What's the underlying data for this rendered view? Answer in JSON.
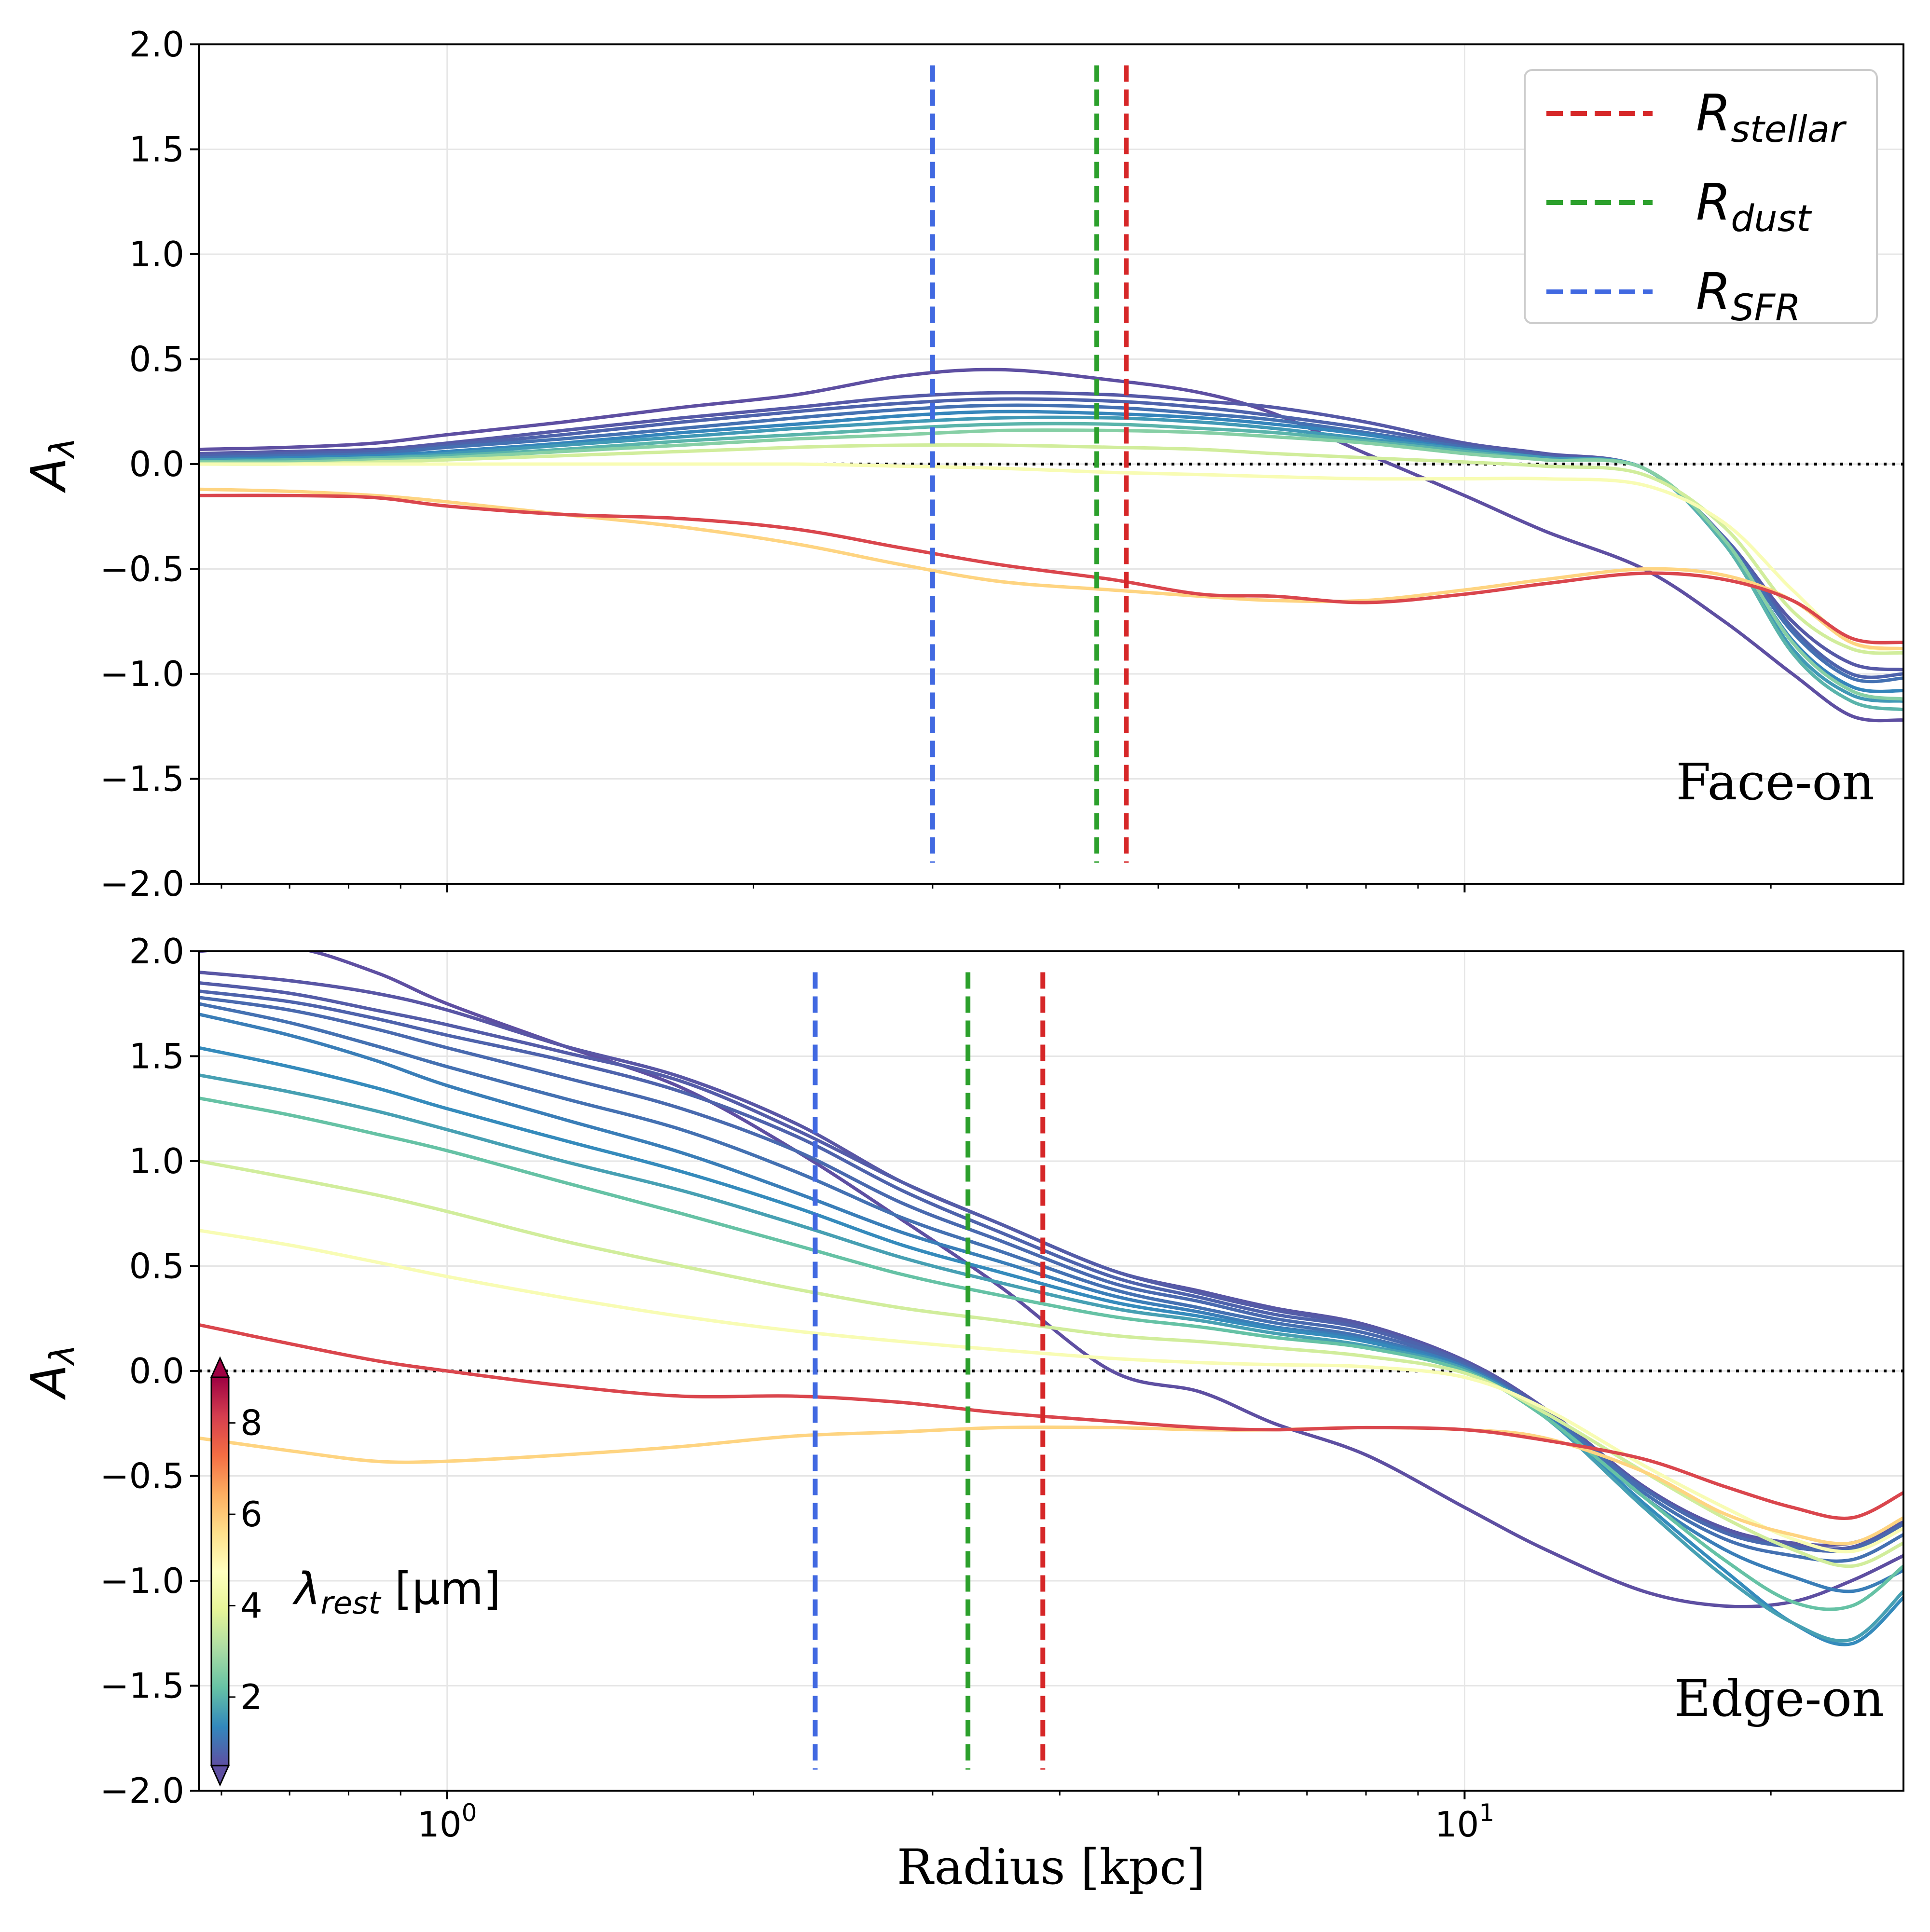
{
  "chart_data": {
    "type": "line",
    "xscale": "log",
    "xlabel": "Radius [kpc]",
    "x_ticks": [
      {
        "value": 1,
        "label": "10",
        "exp": "0"
      },
      {
        "value": 10,
        "label": "10",
        "exp": "1"
      }
    ],
    "grid": true,
    "zero_line": "dotted",
    "colorbar": {
      "label": "λ",
      "label_sub": "rest",
      "label_unit": " [μm]",
      "range": [
        0.5,
        9
      ],
      "ticks": [
        "2",
        "4",
        "6",
        "8"
      ],
      "tick_values": [
        2,
        4,
        6,
        8
      ],
      "colormap": "Spectral_r"
    },
    "legend": {
      "placement": "top-right",
      "items": [
        {
          "name": "R",
          "sub": "stellar",
          "color": "#d62728",
          "style": "dashed"
        },
        {
          "name": "R",
          "sub": "dust",
          "color": "#2ca02c",
          "style": "dashed"
        },
        {
          "name": "R",
          "sub": "SFR",
          "color": "#4169e1",
          "style": "dashed"
        }
      ]
    },
    "panels": [
      {
        "label": "Face-on",
        "ylabel": "A",
        "ylabel_sub": "λ",
        "xlim": [
          0.57,
          27
        ],
        "ylim": [
          -2,
          2
        ],
        "y_ticks": [
          "2.0",
          "1.5",
          "1.0",
          "0.5",
          "0.0",
          "−0.5",
          "−1.0",
          "−1.5",
          "−2.0"
        ],
        "y_tick_values": [
          2,
          1.5,
          1,
          0.5,
          0,
          -0.5,
          -1,
          -1.5,
          -2
        ],
        "vlines": [
          {
            "x": 3.0,
            "color": "#4169e1",
            "ymin": -1.9,
            "ymax": 1.9
          },
          {
            "x": 4.35,
            "color": "#2ca02c",
            "ymin": -1.9,
            "ymax": 1.9
          },
          {
            "x": 4.65,
            "color": "#d62728",
            "ymin": -1.9,
            "ymax": 1.9
          }
        ],
        "x": [
          0.57,
          0.7,
          0.85,
          1.0,
          1.3,
          1.7,
          2.2,
          2.8,
          3.5,
          4.5,
          5.5,
          6.5,
          8.0,
          10.0,
          12.0,
          15.0,
          18.0,
          21.0,
          24.0,
          27.0
        ],
        "series": [
          {
            "wl": 0.5,
            "values": [
              0.07,
              0.08,
              0.1,
              0.14,
              0.2,
              0.27,
              0.33,
              0.42,
              0.45,
              0.4,
              0.34,
              0.24,
              0.05,
              -0.15,
              -0.32,
              -0.5,
              -0.75,
              -1.0,
              -1.2,
              -1.22
            ]
          },
          {
            "wl": 0.65,
            "values": [
              0.05,
              0.06,
              0.07,
              0.1,
              0.16,
              0.22,
              0.27,
              0.32,
              0.34,
              0.33,
              0.3,
              0.27,
              0.2,
              0.1,
              0.05,
              -0.02,
              -0.35,
              -0.75,
              -0.95,
              -0.98
            ]
          },
          {
            "wl": 0.8,
            "values": [
              0.04,
              0.05,
              0.06,
              0.09,
              0.14,
              0.2,
              0.25,
              0.29,
              0.31,
              0.3,
              0.27,
              0.23,
              0.17,
              0.09,
              0.04,
              -0.02,
              -0.35,
              -0.78,
              -1.0,
              -1.0
            ]
          },
          {
            "wl": 1.0,
            "values": [
              0.03,
              0.04,
              0.05,
              0.08,
              0.12,
              0.17,
              0.22,
              0.26,
              0.28,
              0.27,
              0.24,
              0.21,
              0.15,
              0.08,
              0.03,
              -0.02,
              -0.36,
              -0.8,
              -1.02,
              -1.02
            ]
          },
          {
            "wl": 1.3,
            "values": [
              0.02,
              0.03,
              0.04,
              0.06,
              0.1,
              0.15,
              0.19,
              0.23,
              0.25,
              0.24,
              0.22,
              0.19,
              0.14,
              0.07,
              0.03,
              -0.02,
              -0.37,
              -0.84,
              -1.06,
              -1.08
            ]
          },
          {
            "wl": 1.6,
            "values": [
              0.02,
              0.02,
              0.03,
              0.05,
              0.09,
              0.13,
              0.17,
              0.2,
              0.22,
              0.22,
              0.2,
              0.17,
              0.12,
              0.07,
              0.03,
              -0.02,
              -0.38,
              -0.88,
              -1.1,
              -1.13
            ]
          },
          {
            "wl": 2.0,
            "values": [
              0.01,
              0.02,
              0.03,
              0.04,
              0.07,
              0.11,
              0.14,
              0.17,
              0.19,
              0.19,
              0.17,
              0.15,
              0.11,
              0.06,
              0.02,
              -0.02,
              -0.38,
              -0.9,
              -1.13,
              -1.17
            ]
          },
          {
            "wl": 2.6,
            "values": [
              0.01,
              0.01,
              0.02,
              0.03,
              0.06,
              0.09,
              0.12,
              0.14,
              0.16,
              0.16,
              0.15,
              0.13,
              0.1,
              0.05,
              0.02,
              -0.02,
              -0.36,
              -0.85,
              -1.08,
              -1.12
            ]
          },
          {
            "wl": 3.6,
            "values": [
              0.0,
              0.0,
              0.01,
              0.02,
              0.04,
              0.06,
              0.08,
              0.09,
              0.09,
              0.08,
              0.07,
              0.05,
              0.03,
              0.01,
              -0.01,
              -0.05,
              -0.3,
              -0.7,
              -0.88,
              -0.9
            ]
          },
          {
            "wl": 4.5,
            "values": [
              0.0,
              0.0,
              0.0,
              0.0,
              0.0,
              0.0,
              0.0,
              -0.01,
              -0.02,
              -0.04,
              -0.05,
              -0.06,
              -0.07,
              -0.07,
              -0.07,
              -0.1,
              -0.28,
              -0.6,
              -0.85,
              -0.88
            ]
          },
          {
            "wl": 5.8,
            "values": [
              -0.12,
              -0.13,
              -0.15,
              -0.18,
              -0.24,
              -0.3,
              -0.38,
              -0.48,
              -0.56,
              -0.6,
              -0.63,
              -0.65,
              -0.65,
              -0.6,
              -0.55,
              -0.5,
              -0.53,
              -0.65,
              -0.85,
              -0.88
            ]
          },
          {
            "wl": 8.0,
            "values": [
              -0.15,
              -0.15,
              -0.16,
              -0.2,
              -0.24,
              -0.26,
              -0.31,
              -0.4,
              -0.48,
              -0.55,
              -0.62,
              -0.63,
              -0.66,
              -0.62,
              -0.57,
              -0.52,
              -0.55,
              -0.65,
              -0.83,
              -0.85
            ]
          }
        ]
      },
      {
        "label": "Edge-on",
        "ylabel": "A",
        "ylabel_sub": "λ",
        "xlim": [
          0.57,
          27
        ],
        "ylim": [
          -2,
          2
        ],
        "y_ticks": [
          "2.0",
          "1.5",
          "1.0",
          "0.5",
          "0.0",
          "−0.5",
          "−1.0",
          "−1.5",
          "−2.0"
        ],
        "y_tick_values": [
          2,
          1.5,
          1,
          0.5,
          0,
          -0.5,
          -1,
          -1.5,
          -2
        ],
        "vlines": [
          {
            "x": 2.3,
            "color": "#4169e1",
            "ymin": -1.9,
            "ymax": 1.9
          },
          {
            "x": 3.25,
            "color": "#2ca02c",
            "ymin": -1.9,
            "ymax": 1.9
          },
          {
            "x": 3.85,
            "color": "#d62728",
            "ymin": -1.9,
            "ymax": 1.9
          }
        ],
        "x": [
          0.57,
          0.7,
          0.85,
          1.0,
          1.3,
          1.7,
          2.2,
          2.8,
          3.5,
          4.5,
          5.5,
          6.5,
          8.0,
          10.0,
          12.0,
          15.0,
          18.0,
          21.0,
          24.0,
          27.0
        ],
        "series": [
          {
            "wl": 0.5,
            "values": [
              2.0,
              2.02,
              1.9,
              1.75,
              1.55,
              1.35,
              1.05,
              0.72,
              0.4,
              0.0,
              -0.1,
              -0.25,
              -0.4,
              -0.65,
              -0.85,
              -1.05,
              -1.12,
              -1.1,
              -1.0,
              -0.88
            ]
          },
          {
            "wl": 0.6,
            "values": [
              1.9,
              1.86,
              1.8,
              1.72,
              1.55,
              1.4,
              1.18,
              0.9,
              0.7,
              0.48,
              0.38,
              0.3,
              0.22,
              0.05,
              -0.18,
              -0.55,
              -0.75,
              -0.82,
              -0.82,
              -0.72
            ]
          },
          {
            "wl": 0.7,
            "values": [
              1.85,
              1.8,
              1.72,
              1.65,
              1.52,
              1.38,
              1.15,
              0.9,
              0.7,
              0.48,
              0.37,
              0.29,
              0.21,
              0.04,
              -0.19,
              -0.56,
              -0.76,
              -0.83,
              -0.84,
              -0.72
            ]
          },
          {
            "wl": 0.8,
            "values": [
              1.81,
              1.76,
              1.68,
              1.6,
              1.48,
              1.33,
              1.12,
              0.86,
              0.66,
              0.45,
              0.35,
              0.27,
              0.2,
              0.04,
              -0.19,
              -0.56,
              -0.77,
              -0.84,
              -0.85,
              -0.73
            ]
          },
          {
            "wl": 0.9,
            "values": [
              1.78,
              1.72,
              1.63,
              1.54,
              1.4,
              1.25,
              1.05,
              0.8,
              0.62,
              0.42,
              0.33,
              0.25,
              0.18,
              0.03,
              -0.2,
              -0.56,
              -0.77,
              -0.84,
              -0.85,
              -0.73
            ]
          },
          {
            "wl": 1.0,
            "values": [
              1.75,
              1.66,
              1.55,
              1.45,
              1.3,
              1.15,
              0.95,
              0.73,
              0.57,
              0.39,
              0.3,
              0.23,
              0.16,
              0.02,
              -0.2,
              -0.58,
              -0.8,
              -0.88,
              -0.9,
              -0.78
            ]
          },
          {
            "wl": 1.2,
            "values": [
              1.7,
              1.6,
              1.48,
              1.36,
              1.2,
              1.04,
              0.85,
              0.66,
              0.52,
              0.36,
              0.28,
              0.21,
              0.15,
              0.02,
              -0.21,
              -0.6,
              -0.85,
              -0.98,
              -1.05,
              -0.95
            ]
          },
          {
            "wl": 1.4,
            "values": [
              1.54,
              1.45,
              1.35,
              1.25,
              1.1,
              0.95,
              0.78,
              0.6,
              0.47,
              0.33,
              0.26,
              0.2,
              0.14,
              0.01,
              -0.22,
              -0.63,
              -0.95,
              -1.2,
              -1.3,
              -1.08
            ]
          },
          {
            "wl": 1.7,
            "values": [
              1.41,
              1.33,
              1.24,
              1.15,
              1.0,
              0.86,
              0.7,
              0.54,
              0.42,
              0.3,
              0.24,
              0.18,
              0.12,
              0.01,
              -0.22,
              -0.65,
              -0.98,
              -1.2,
              -1.28,
              -1.05
            ]
          },
          {
            "wl": 2.2,
            "values": [
              1.3,
              1.22,
              1.13,
              1.05,
              0.9,
              0.75,
              0.6,
              0.46,
              0.36,
              0.26,
              0.21,
              0.16,
              0.11,
              0.0,
              -0.22,
              -0.6,
              -0.9,
              -1.1,
              -1.12,
              -0.93
            ]
          },
          {
            "wl": 3.6,
            "values": [
              1.0,
              0.92,
              0.84,
              0.76,
              0.62,
              0.5,
              0.39,
              0.3,
              0.24,
              0.17,
              0.14,
              0.11,
              0.07,
              -0.01,
              -0.2,
              -0.48,
              -0.7,
              -0.85,
              -0.93,
              -0.82
            ]
          },
          {
            "wl": 4.5,
            "values": [
              0.67,
              0.6,
              0.52,
              0.45,
              0.35,
              0.26,
              0.19,
              0.14,
              0.1,
              0.06,
              0.04,
              0.03,
              0.02,
              -0.03,
              -0.18,
              -0.45,
              -0.65,
              -0.8,
              -0.86,
              -0.75
            ]
          },
          {
            "wl": 5.8,
            "values": [
              -0.32,
              -0.38,
              -0.43,
              -0.43,
              -0.4,
              -0.36,
              -0.31,
              -0.29,
              -0.27,
              -0.27,
              -0.28,
              -0.28,
              -0.27,
              -0.28,
              -0.32,
              -0.48,
              -0.68,
              -0.78,
              -0.82,
              -0.7
            ]
          },
          {
            "wl": 8.0,
            "values": [
              0.22,
              0.13,
              0.05,
              0.0,
              -0.07,
              -0.12,
              -0.12,
              -0.15,
              -0.2,
              -0.24,
              -0.27,
              -0.28,
              -0.27,
              -0.28,
              -0.33,
              -0.42,
              -0.55,
              -0.65,
              -0.7,
              -0.58
            ]
          }
        ]
      }
    ]
  }
}
